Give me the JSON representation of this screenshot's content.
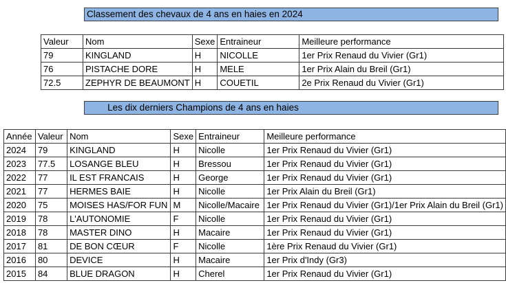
{
  "sheet": {
    "background_color": "#ffffff",
    "title_fill_color": "#8DB4E2",
    "grid_border_color": "#3a3a3a",
    "text_color": "#000000"
  },
  "table1": {
    "title": "Classement des chevaux de 4 ans en haies en 2024",
    "columns": [
      "Valeur",
      "Nom",
      "Sexe",
      "Entraineur",
      "Meilleure performance"
    ],
    "rows": [
      [
        "79",
        "KINGLAND",
        "H",
        "NICOLLE",
        "1er Prix Renaud du Vivier (Gr1)"
      ],
      [
        "76",
        "PISTACHE DORE",
        "H",
        "MELE",
        "1er Prix Alain du Breil (Gr1)"
      ],
      [
        "72.5",
        "ZEPHYR DE BEAUMONT",
        "H",
        "COUETIL",
        "2e Prix Renaud du Vivier (Gr1)"
      ]
    ]
  },
  "table2": {
    "title": "Les dix derniers Champions de 4 ans en haies",
    "columns": [
      "Année",
      "Valeur",
      "Nom",
      "Sexe",
      "Entraineur",
      "Meilleure performance"
    ],
    "rows": [
      [
        "2024",
        "79",
        "KINGLAND",
        "H",
        "Nicolle",
        "1er Prix Renaud du Vivier (Gr1)"
      ],
      [
        "2023",
        "77.5",
        "LOSANGE BLEU",
        "H",
        "Bressou",
        "1er Prix Renaud du Vivier (Gr1)"
      ],
      [
        "2022",
        "77",
        "IL EST FRANCAIS",
        "H",
        "George",
        "1er Prix Renaud du Vivier (Gr1)"
      ],
      [
        "2021",
        "77",
        "HERMES BAIE",
        "H",
        "Nicolle",
        "1er Prix Alain du Breil (Gr1)"
      ],
      [
        "2020",
        "75",
        "MOISES HAS/FOR FUN",
        "M",
        "Nicolle/Macaire",
        "1er Prix Renaud du Vivier (Gr1)/1er Prix Alain du Breil (Gr1)"
      ],
      [
        "2019",
        "78",
        "L'AUTONOMIE",
        "F",
        "Nicolle",
        "1er Prix Renaud du Vivier (Gr1)"
      ],
      [
        "2018",
        "78",
        "MASTER DINO",
        "H",
        "Macaire",
        "1er Prix Renaud du Vivier (Gr1)"
      ],
      [
        "2017",
        "81",
        "DE BON CŒUR",
        "F",
        "Nicolle",
        "1ère Prix Renaud du Vivier (Gr1)"
      ],
      [
        "2016",
        "80",
        "DEVICE",
        "H",
        "Macaire",
        "1er Prix d'Indy (Gr3)"
      ],
      [
        "2015",
        "84",
        "BLUE DRAGON",
        "H",
        "Cherel",
        "1er Prix Renaud du Vivier (Gr1)"
      ]
    ]
  }
}
